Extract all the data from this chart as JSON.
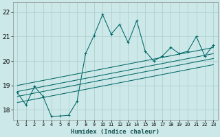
{
  "xlabel": "Humidex (Indice chaleur)",
  "ylabel": "",
  "bg_color": "#cce8e8",
  "grid_color": "#aacccc",
  "line_color": "#006666",
  "xlim": [
    -0.5,
    23.5
  ],
  "ylim": [
    17.6,
    22.4
  ],
  "yticks": [
    18,
    19,
    20,
    21,
    22
  ],
  "xticks": [
    0,
    1,
    2,
    3,
    4,
    5,
    6,
    7,
    8,
    9,
    10,
    11,
    12,
    13,
    14,
    15,
    16,
    17,
    18,
    19,
    20,
    21,
    22,
    23
  ],
  "main_series_x": [
    0,
    1,
    2,
    3,
    4,
    5,
    6,
    7,
    8,
    9,
    10,
    11,
    12,
    13,
    14,
    15,
    16,
    17,
    18,
    19,
    20,
    21,
    22,
    23
  ],
  "main_series_y": [
    18.7,
    18.2,
    18.95,
    18.55,
    17.72,
    17.75,
    17.78,
    18.35,
    20.3,
    21.05,
    21.9,
    21.1,
    21.5,
    20.75,
    21.65,
    20.4,
    20.0,
    20.2,
    20.55,
    20.3,
    20.4,
    21.0,
    20.2,
    20.65
  ],
  "regression_lines": [
    {
      "x": [
        0,
        23
      ],
      "y": [
        19.0,
        20.55
      ]
    },
    {
      "x": [
        0,
        23
      ],
      "y": [
        18.75,
        20.3
      ]
    },
    {
      "x": [
        0,
        23
      ],
      "y": [
        18.55,
        20.1
      ]
    },
    {
      "x": [
        0,
        23
      ],
      "y": [
        18.3,
        19.85
      ]
    }
  ]
}
